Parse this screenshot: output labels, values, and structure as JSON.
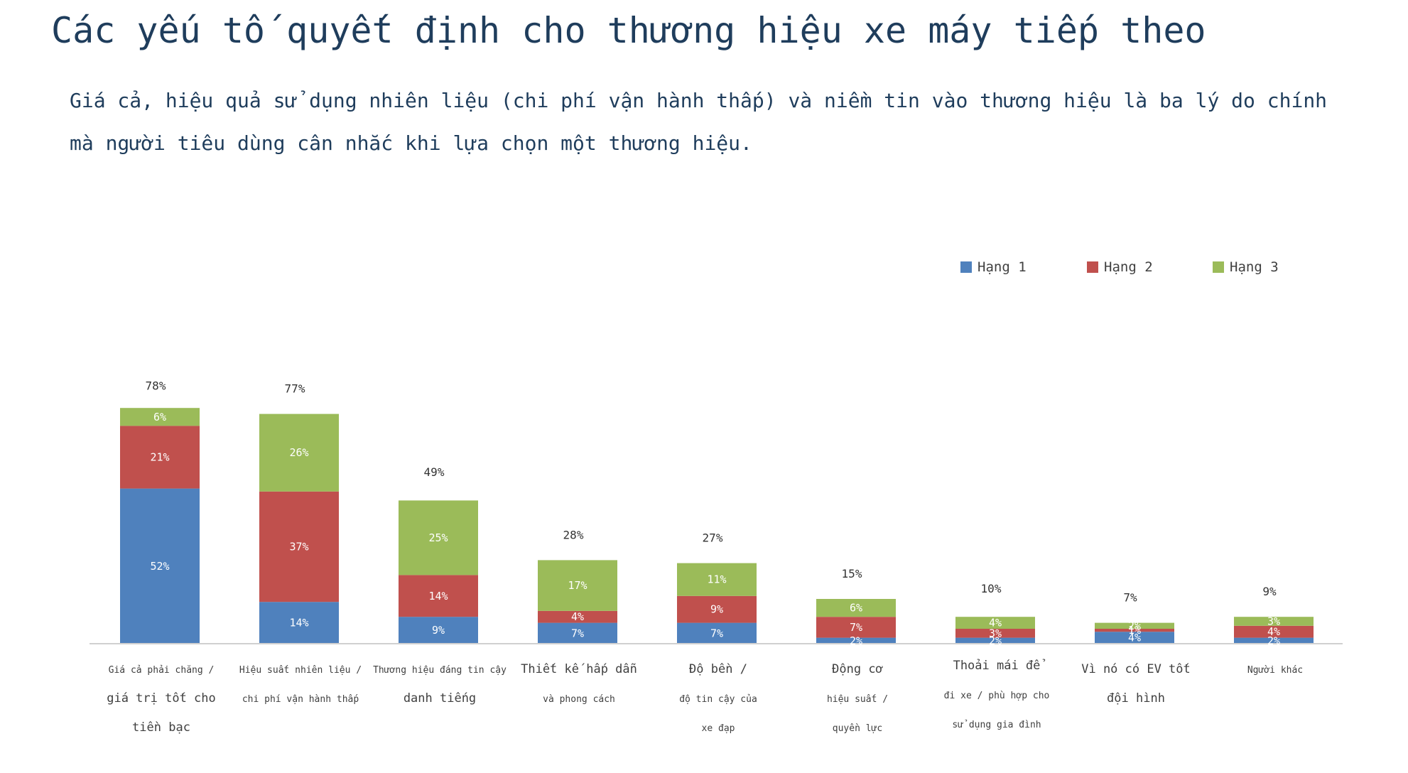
{
  "title": "Các yếu tố quyết định cho thương hiệu xe máy tiếp theo",
  "subtitle": "Giá cả, hiệu quả sử dụng nhiên liệu (chi phí vận hành thấp) và niềm tin vào thương hiệu là ba lý do chính mà người tiêu dùng cân nhắc khi lựa chọn một thương hiệu.",
  "chart_data": {
    "type": "bar",
    "stacked": true,
    "categories": [
      [
        "Giá cả phải chăng /",
        "giá trị tốt cho",
        "tiền bạc"
      ],
      [
        "Hiệu suất nhiên liệu /",
        "chi phí vận hành thấp"
      ],
      [
        "Thương hiệu đáng tin cậy",
        "danh tiếng"
      ],
      [
        "Thiết kế hấp dẫn",
        "và phong cách"
      ],
      [
        "Độ bền /",
        "độ tin cậy của",
        "xe đạp"
      ],
      [
        "Động cơ",
        "hiệu suất /",
        "quyền lực"
      ],
      [
        "Thoải mái để",
        "đi xe / phù hợp cho",
        "sử dụng gia đình"
      ],
      [
        "Vì nó có EV tốt",
        "đội hình"
      ],
      [
        "Người khác"
      ]
    ],
    "series": [
      {
        "name": "Hạng 1",
        "color": "#4F81BD",
        "values": [
          52,
          14,
          9,
          7,
          7,
          2,
          2,
          4,
          2
        ]
      },
      {
        "name": "Hạng 2",
        "color": "#C0504D",
        "values": [
          21,
          37,
          14,
          4,
          9,
          7,
          3,
          1,
          4
        ]
      },
      {
        "name": "Hạng 3",
        "color": "#9BBB59",
        "values": [
          6,
          26,
          25,
          17,
          11,
          6,
          4,
          2,
          3
        ]
      }
    ],
    "totals": [
      78,
      77,
      49,
      28,
      27,
      15,
      10,
      7,
      9
    ],
    "legend_position": "top-right",
    "grid": false,
    "ylim": [
      0,
      80
    ]
  }
}
